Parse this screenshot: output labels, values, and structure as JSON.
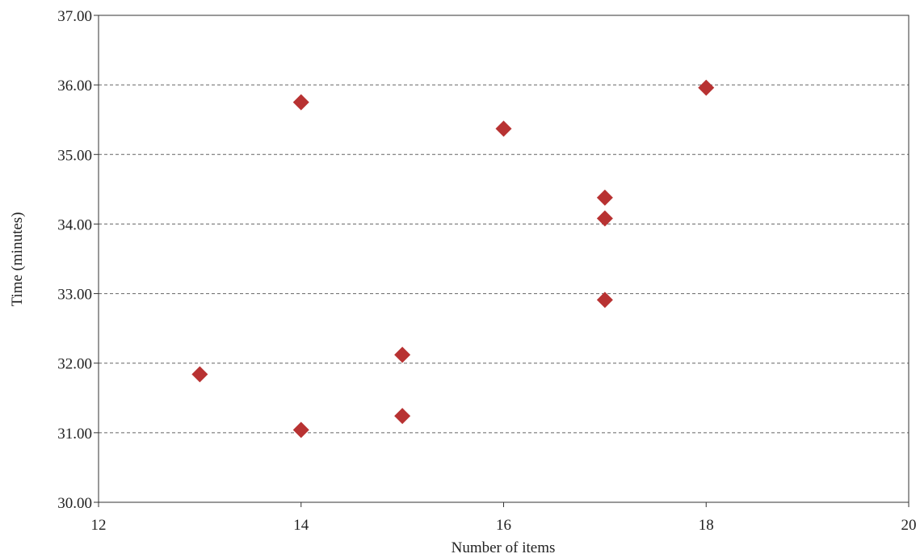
{
  "chart_data": {
    "type": "scatter",
    "title": "",
    "xlabel": "Number of items",
    "ylabel": "Time (minutes)",
    "xlim": [
      12,
      20
    ],
    "ylim": [
      30,
      37
    ],
    "x_ticks": [
      "12",
      "14",
      "16",
      "18",
      "20"
    ],
    "x_tick_values": [
      12,
      14,
      16,
      18,
      20
    ],
    "y_ticks": [
      "30.00",
      "31.00",
      "32.00",
      "33.00",
      "34.00",
      "35.00",
      "36.00",
      "37.00"
    ],
    "y_tick_values": [
      30,
      31,
      32,
      33,
      34,
      35,
      36,
      37
    ],
    "grid": "horizontal dashed",
    "marker": "diamond",
    "marker_color": "#b83232",
    "series": [
      {
        "x": [
          13,
          14,
          14,
          15,
          15,
          16,
          17,
          17,
          17,
          18
        ],
        "y": [
          31.84,
          31.04,
          35.75,
          31.24,
          32.12,
          35.37,
          32.91,
          34.08,
          34.38,
          35.96
        ]
      }
    ]
  }
}
